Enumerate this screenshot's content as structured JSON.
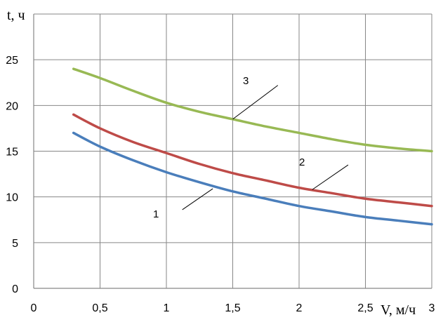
{
  "chart_data": {
    "type": "line",
    "title": "",
    "xlabel": "V, м/ч",
    "ylabel": "t, ч",
    "xlim": [
      0,
      3
    ],
    "ylim": [
      0,
      30
    ],
    "x_ticks": [
      "0",
      "0,5",
      "1",
      "1,5",
      "2",
      "2,5",
      "3"
    ],
    "x_tick_values": [
      0,
      0.5,
      1,
      1.5,
      2,
      2.5,
      3
    ],
    "y_ticks": [
      "0",
      "5",
      "10",
      "15",
      "20",
      "25"
    ],
    "y_tick_values": [
      0,
      5,
      10,
      15,
      20,
      25
    ],
    "grid": true,
    "series": [
      {
        "name": "1",
        "color": "#4a7ebb",
        "x": [
          0.3,
          0.5,
          0.75,
          1.0,
          1.25,
          1.5,
          1.75,
          2.0,
          2.25,
          2.5,
          2.75,
          3.0
        ],
        "values": [
          17.0,
          15.5,
          14.0,
          12.7,
          11.6,
          10.6,
          9.8,
          9.0,
          8.4,
          7.8,
          7.4,
          7.0
        ],
        "label_at": [
          1.35,
          1.46
        ],
        "label_pos": [
          1.1,
          8.2
        ]
      },
      {
        "name": "2",
        "color": "#be4b48",
        "x": [
          0.3,
          0.5,
          0.75,
          1.0,
          1.25,
          1.5,
          1.75,
          2.0,
          2.25,
          2.5,
          2.75,
          3.0
        ],
        "values": [
          19.0,
          17.5,
          16.0,
          14.8,
          13.6,
          12.6,
          11.8,
          11.0,
          10.4,
          9.8,
          9.4,
          9.0
        ],
        "label_at": [
          2.1,
          2.35
        ],
        "label_pos": [
          10.7,
          13.8
        ]
      },
      {
        "name": "3",
        "color": "#98b954",
        "x": [
          0.3,
          0.5,
          0.75,
          1.0,
          1.25,
          1.5,
          1.75,
          2.0,
          2.25,
          2.5,
          2.75,
          3.0
        ],
        "values": [
          24.0,
          23.0,
          21.6,
          20.3,
          19.3,
          18.5,
          17.7,
          17.0,
          16.3,
          15.7,
          15.3,
          15.0
        ],
        "label_at": [
          1.5,
          1.85
        ],
        "label_pos": [
          18.5,
          22.5
        ]
      }
    ]
  }
}
